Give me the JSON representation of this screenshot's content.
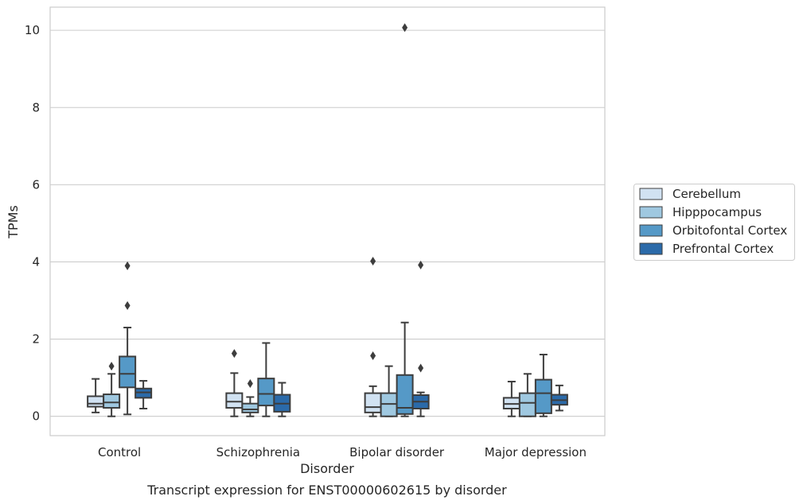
{
  "chart_data": {
    "type": "box",
    "title": "",
    "caption": "Transcript expression for ENST00000602615 by disorder",
    "xlabel": "Disorder",
    "ylabel": "TPMs",
    "ylim": [
      -0.5,
      10.6
    ],
    "yticks": [
      0,
      2,
      4,
      6,
      8,
      10
    ],
    "grid": "horizontal",
    "legend_position": "right",
    "categories": [
      "Control",
      "Schizophrenia",
      "Bipolar disorder",
      "Major depression"
    ],
    "series": [
      {
        "name": "Cerebellum",
        "color": "#d1e2f2",
        "boxes": [
          {
            "whislo": 0.1,
            "q1": 0.25,
            "med": 0.33,
            "q3": 0.52,
            "whishi": 0.97,
            "fliers": []
          },
          {
            "whislo": 0.0,
            "q1": 0.22,
            "med": 0.38,
            "q3": 0.6,
            "whishi": 1.12,
            "fliers": [
              1.63
            ]
          },
          {
            "whislo": 0.0,
            "q1": 0.1,
            "med": 0.24,
            "q3": 0.6,
            "whishi": 0.78,
            "fliers": [
              1.57,
              4.02
            ]
          },
          {
            "whislo": 0.0,
            "q1": 0.2,
            "med": 0.32,
            "q3": 0.48,
            "whishi": 0.9,
            "fliers": []
          }
        ]
      },
      {
        "name": "Hipppocampus",
        "color": "#9fc8e0",
        "boxes": [
          {
            "whislo": 0.0,
            "q1": 0.22,
            "med": 0.36,
            "q3": 0.57,
            "whishi": 1.1,
            "fliers": [
              1.3
            ]
          },
          {
            "whislo": 0.0,
            "q1": 0.1,
            "med": 0.18,
            "q3": 0.33,
            "whishi": 0.5,
            "fliers": [
              0.85
            ]
          },
          {
            "whislo": 0.0,
            "q1": 0.0,
            "med": 0.32,
            "q3": 0.6,
            "whishi": 1.3,
            "fliers": []
          },
          {
            "whislo": 0.0,
            "q1": 0.0,
            "med": 0.35,
            "q3": 0.6,
            "whishi": 1.1,
            "fliers": []
          }
        ]
      },
      {
        "name": "Orbitofontal Cortex",
        "color": "#5599c7",
        "boxes": [
          {
            "whislo": 0.05,
            "q1": 0.75,
            "med": 1.1,
            "q3": 1.55,
            "whishi": 2.3,
            "fliers": [
              2.87,
              3.9
            ]
          },
          {
            "whislo": 0.0,
            "q1": 0.28,
            "med": 0.58,
            "q3": 0.98,
            "whishi": 1.9,
            "fliers": []
          },
          {
            "whislo": 0.0,
            "q1": 0.06,
            "med": 0.22,
            "q3": 1.07,
            "whishi": 2.43,
            "fliers": [
              10.07
            ]
          },
          {
            "whislo": 0.0,
            "q1": 0.08,
            "med": 0.6,
            "q3": 0.95,
            "whishi": 1.6,
            "fliers": []
          }
        ]
      },
      {
        "name": "Prefrontal Cortex",
        "color": "#2b6aa9",
        "boxes": [
          {
            "whislo": 0.2,
            "q1": 0.48,
            "med": 0.62,
            "q3": 0.72,
            "whishi": 0.92,
            "fliers": []
          },
          {
            "whislo": 0.0,
            "q1": 0.12,
            "med": 0.33,
            "q3": 0.56,
            "whishi": 0.87,
            "fliers": []
          },
          {
            "whislo": 0.0,
            "q1": 0.2,
            "med": 0.38,
            "q3": 0.55,
            "whishi": 0.62,
            "fliers": [
              1.25,
              3.92
            ]
          },
          {
            "whislo": 0.15,
            "q1": 0.3,
            "med": 0.42,
            "q3": 0.56,
            "whishi": 0.8,
            "fliers": []
          }
        ]
      }
    ]
  }
}
